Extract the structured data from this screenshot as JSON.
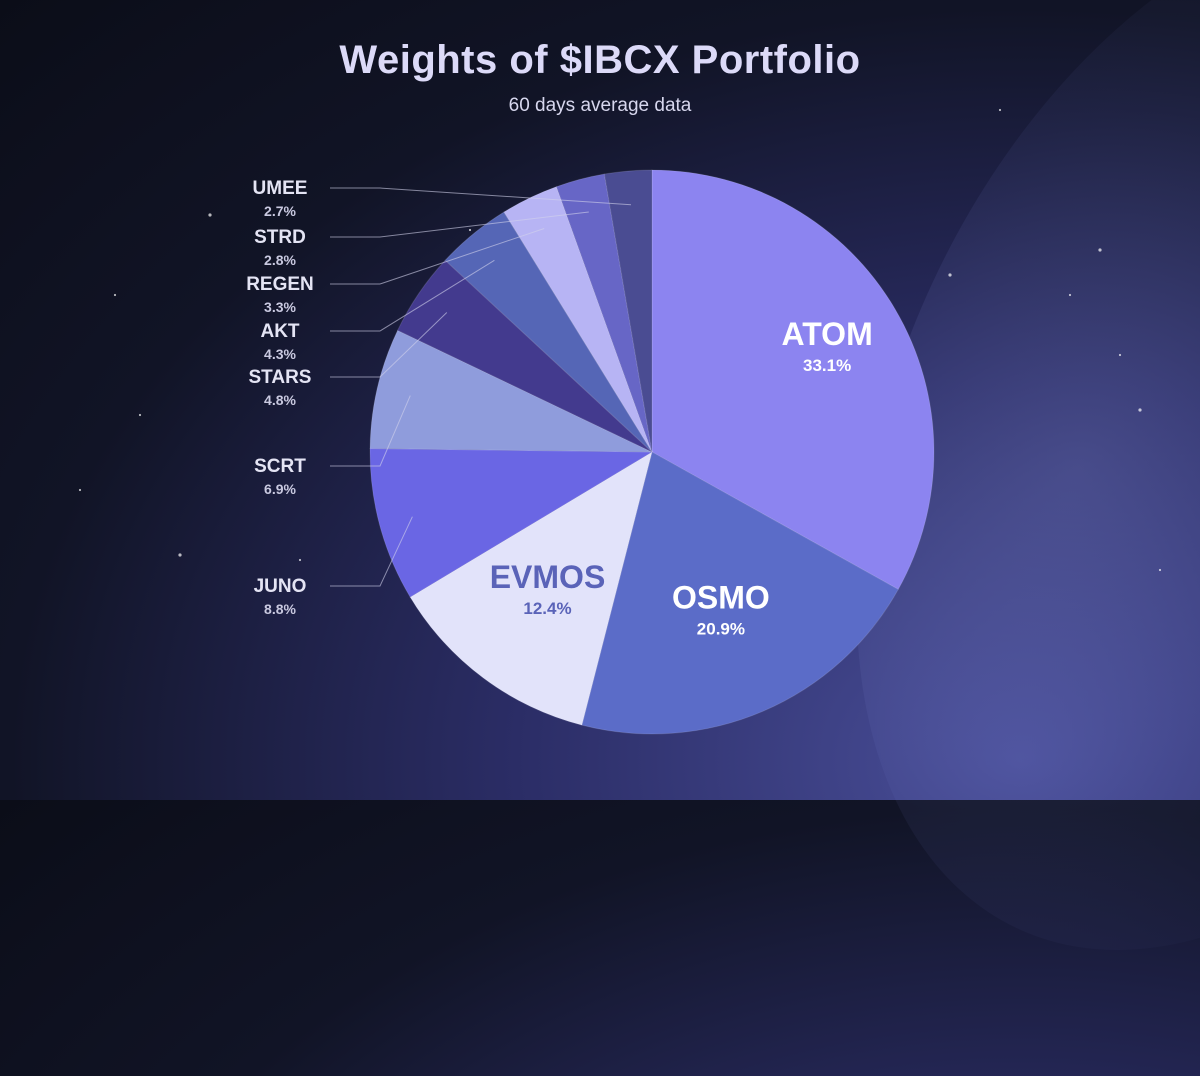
{
  "chart_data": {
    "type": "pie",
    "title": "Weights of $IBCX Portfolio",
    "subtitle": "60 days average data",
    "slices": [
      {
        "label": "ATOM",
        "value": 33.1,
        "display": "33.1%",
        "color": "#8c84f0",
        "label_position": "inside"
      },
      {
        "label": "OSMO",
        "value": 20.9,
        "display": "20.9%",
        "color": "#5b6cc8",
        "label_position": "inside"
      },
      {
        "label": "EVMOS",
        "value": 12.4,
        "display": "12.4%",
        "color": "#e2e3fa",
        "label_position": "inside"
      },
      {
        "label": "JUNO",
        "value": 8.8,
        "display": "8.8%",
        "color": "#6a66e4",
        "label_position": "outside"
      },
      {
        "label": "SCRT",
        "value": 6.9,
        "display": "6.9%",
        "color": "#8f9cdc",
        "label_position": "outside"
      },
      {
        "label": "STARS",
        "value": 4.8,
        "display": "4.8%",
        "color": "#433a8e",
        "label_position": "outside"
      },
      {
        "label": "AKT",
        "value": 4.3,
        "display": "4.3%",
        "color": "#5566b6",
        "label_position": "outside"
      },
      {
        "label": "REGEN",
        "value": 3.3,
        "display": "3.3%",
        "color": "#b7b4f4",
        "label_position": "outside"
      },
      {
        "label": "STRD",
        "value": 2.8,
        "display": "2.8%",
        "color": "#6766c6",
        "label_position": "outside"
      },
      {
        "label": "UMEE",
        "value": 2.7,
        "display": "2.7%",
        "color": "#4a4c92",
        "label_position": "outside"
      }
    ],
    "legend": "none"
  }
}
